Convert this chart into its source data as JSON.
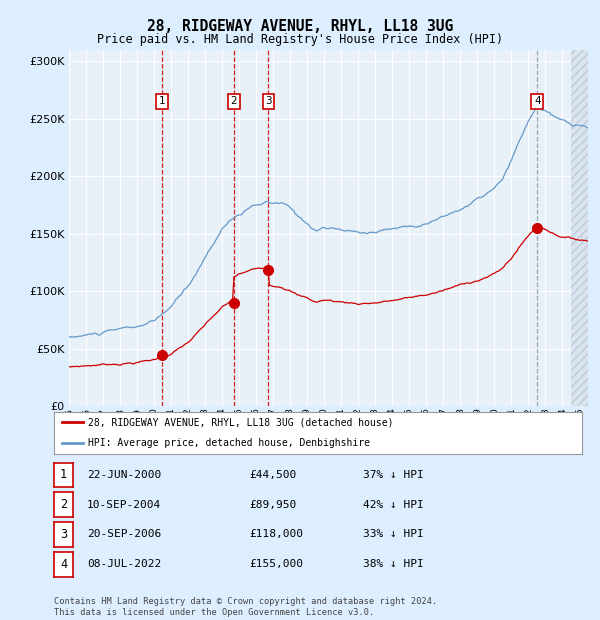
{
  "title1": "28, RIDGEWAY AVENUE, RHYL, LL18 3UG",
  "title2": "Price paid vs. HM Land Registry's House Price Index (HPI)",
  "legend_line1": "28, RIDGEWAY AVENUE, RHYL, LL18 3UG (detached house)",
  "legend_line2": "HPI: Average price, detached house, Denbighshire",
  "footer": "Contains HM Land Registry data © Crown copyright and database right 2024.\nThis data is licensed under the Open Government Licence v3.0.",
  "transactions": [
    {
      "num": 1,
      "date": "22-JUN-2000",
      "price": 44500,
      "pct": "37%",
      "year_x": 2000.47
    },
    {
      "num": 2,
      "date": "10-SEP-2004",
      "price": 89950,
      "pct": "42%",
      "year_x": 2004.69
    },
    {
      "num": 3,
      "date": "20-SEP-2006",
      "price": 118000,
      "pct": "33%",
      "year_x": 2006.72
    },
    {
      "num": 4,
      "date": "08-JUL-2022",
      "price": 155000,
      "pct": "38%",
      "year_x": 2022.52
    }
  ],
  "table_rows": [
    {
      "num": 1,
      "date": "22-JUN-2000",
      "price": "£44,500",
      "pct": "37% ↓ HPI"
    },
    {
      "num": 2,
      "date": "10-SEP-2004",
      "price": "£89,950",
      "pct": "42% ↓ HPI"
    },
    {
      "num": 3,
      "date": "20-SEP-2006",
      "price": "£118,000",
      "pct": "33% ↓ HPI"
    },
    {
      "num": 4,
      "date": "08-JUL-2022",
      "price": "£155,000",
      "pct": "38% ↓ HPI"
    }
  ],
  "hpi_color": "#6699cc",
  "sale_color": "#cc0000",
  "bg_color": "#ddeeff",
  "plot_bg": "#ddeeff",
  "grid_color": "#bbbbcc",
  "ylim": [
    0,
    310000
  ],
  "yticks": [
    0,
    50000,
    100000,
    150000,
    200000,
    250000,
    300000
  ],
  "xlim_start": 1995.0,
  "xlim_end": 2025.5
}
